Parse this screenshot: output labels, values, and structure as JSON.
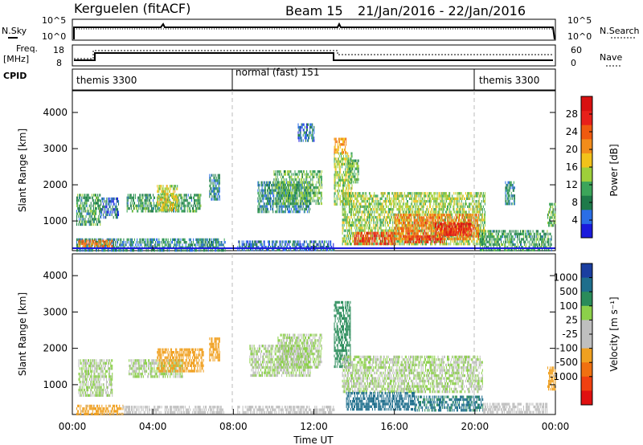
{
  "header": {
    "station": "Kerguelen (fitACF)",
    "beam": "Beam 15",
    "date_range": "21/Jan/2016 - 22/Jan/2016"
  },
  "labels": {
    "nsky": "N.Sky",
    "nsearch": "N.Search",
    "freq_line1": "Freq.",
    "freq_line2": "[MHz]",
    "nave": "Nave",
    "cpid": "CPID",
    "slant_range": "Slant Range [km]",
    "time_ut": "Time UT",
    "power_cb": "Power [dB]",
    "velocity_cb": "Velocity [m s⁻¹]"
  },
  "noise_axis": {
    "left": [
      "10^5",
      "10^0"
    ],
    "right": [
      "10^5",
      "10^0"
    ]
  },
  "freq_axis": {
    "left": [
      "18",
      "8"
    ],
    "right": [
      "60",
      "0"
    ]
  },
  "cpid_segments": [
    {
      "label": "themis 3300",
      "start_hour": 0,
      "end_hour": 8
    },
    {
      "label": "normal (fast) 151",
      "start_hour": 8,
      "end_hour": 20
    },
    {
      "label": "themis 3300",
      "start_hour": 20,
      "end_hour": 24
    }
  ],
  "x_ticks": [
    "00:00",
    "04:00",
    "08:00",
    "12:00",
    "16:00",
    "20:00",
    "00:00"
  ],
  "y_ticks": [
    "1000",
    "2000",
    "3000",
    "4000"
  ],
  "power_ticks": [
    "4",
    "8",
    "12",
    "16",
    "20",
    "24",
    "28"
  ],
  "velocity_ticks": [
    "1000",
    "500",
    "100",
    "25",
    "-25",
    "-100",
    "-500",
    "-1000"
  ],
  "colors": {
    "power_scale": [
      "#1a1adc",
      "#2a6ee6",
      "#1e7a4a",
      "#3ca55a",
      "#9ecf3a",
      "#f2c21a",
      "#f28c1a",
      "#f05a10",
      "#e8201a",
      "#d81010"
    ],
    "velocity_scale": [
      "#1a3ea0",
      "#1e6e8c",
      "#2a8c5a",
      "#8cd04a",
      "#bfbfbf",
      "#bfbfbf",
      "#f0a020",
      "#f07010",
      "#f04010",
      "#e01010"
    ]
  },
  "chart_data": [
    {
      "type": "heatmap",
      "title": "Power",
      "xlabel": "",
      "ylabel": "Slant Range [km]",
      "x_unit": "hours UT",
      "xlim": [
        0,
        24
      ],
      "ylim": [
        180,
        4600
      ],
      "zlabel": "Power [dB]",
      "zlim": [
        0,
        32
      ],
      "patches": [
        {
          "x0": 0.2,
          "x1": 7.6,
          "y0": 200,
          "y1": 520,
          "value": 8
        },
        {
          "x0": 0.3,
          "x1": 2.0,
          "y0": 300,
          "y1": 480,
          "value": 22
        },
        {
          "x0": 0.2,
          "x1": 1.4,
          "y0": 900,
          "y1": 1750,
          "value": 10
        },
        {
          "x0": 1.4,
          "x1": 2.3,
          "y0": 1100,
          "y1": 1650,
          "value": 6
        },
        {
          "x0": 2.7,
          "x1": 6.4,
          "y0": 1250,
          "y1": 1750,
          "value": 10
        },
        {
          "x0": 4.2,
          "x1": 5.2,
          "y0": 1300,
          "y1": 2000,
          "value": 16
        },
        {
          "x0": 6.8,
          "x1": 7.3,
          "y0": 1600,
          "y1": 2300,
          "value": 8
        },
        {
          "x0": 8.2,
          "x1": 13.0,
          "y0": 200,
          "y1": 460,
          "value": 6
        },
        {
          "x0": 9.2,
          "x1": 11.8,
          "y0": 1250,
          "y1": 2100,
          "value": 8
        },
        {
          "x0": 10.0,
          "x1": 12.4,
          "y0": 1500,
          "y1": 2400,
          "value": 12
        },
        {
          "x0": 11.2,
          "x1": 12.0,
          "y0": 3200,
          "y1": 3700,
          "value": 6
        },
        {
          "x0": 13.0,
          "x1": 13.9,
          "y0": 1500,
          "y1": 2900,
          "value": 14
        },
        {
          "x0": 13.0,
          "x1": 13.6,
          "y0": 2900,
          "y1": 3300,
          "value": 20
        },
        {
          "x0": 13.7,
          "x1": 14.2,
          "y0": 2100,
          "y1": 2700,
          "value": 12
        },
        {
          "x0": 13.4,
          "x1": 20.5,
          "y0": 400,
          "y1": 1800,
          "value": 14
        },
        {
          "x0": 14.0,
          "x1": 16.0,
          "y0": 400,
          "y1": 700,
          "value": 26
        },
        {
          "x0": 16.0,
          "x1": 20.2,
          "y0": 500,
          "y1": 1200,
          "value": 22
        },
        {
          "x0": 18.0,
          "x1": 19.8,
          "y0": 600,
          "y1": 950,
          "value": 28
        },
        {
          "x0": 16.5,
          "x1": 18.5,
          "y0": 450,
          "y1": 600,
          "value": 26
        },
        {
          "x0": 20.2,
          "x1": 23.8,
          "y0": 220,
          "y1": 750,
          "value": 10
        },
        {
          "x0": 21.5,
          "x1": 22.0,
          "y0": 1500,
          "y1": 2100,
          "value": 8
        },
        {
          "x0": 23.6,
          "x1": 24.0,
          "y0": 900,
          "y1": 1500,
          "value": 12
        }
      ]
    },
    {
      "type": "heatmap",
      "title": "Velocity",
      "xlabel": "Time UT",
      "ylabel": "Slant Range [km]",
      "x_unit": "hours UT",
      "xlim": [
        0,
        24
      ],
      "ylim": [
        180,
        4600
      ],
      "zlabel": "Velocity [m s⁻¹]",
      "zlim": [
        -1000,
        1000
      ],
      "patches": [
        {
          "x0": 0.3,
          "x1": 2.0,
          "y0": 700,
          "y1": 1700,
          "value": 0
        },
        {
          "x0": 0.2,
          "x1": 2.5,
          "y0": 220,
          "y1": 450,
          "value": -150
        },
        {
          "x0": 2.5,
          "x1": 7.5,
          "y0": 200,
          "y1": 420,
          "value": -40
        },
        {
          "x0": 2.8,
          "x1": 5.5,
          "y0": 1250,
          "y1": 1700,
          "value": 0
        },
        {
          "x0": 4.2,
          "x1": 6.5,
          "y0": 1350,
          "y1": 2000,
          "value": -300
        },
        {
          "x0": 6.8,
          "x1": 7.3,
          "y0": 1700,
          "y1": 2300,
          "value": -300
        },
        {
          "x0": 8.8,
          "x1": 11.8,
          "y0": 1250,
          "y1": 2100,
          "value": 0
        },
        {
          "x0": 10.2,
          "x1": 12.4,
          "y0": 1500,
          "y1": 2400,
          "value": 0
        },
        {
          "x0": 8.2,
          "x1": 13.0,
          "y0": 200,
          "y1": 420,
          "value": -40
        },
        {
          "x0": 13.0,
          "x1": 13.8,
          "y0": 1500,
          "y1": 3300,
          "value": 60
        },
        {
          "x0": 13.4,
          "x1": 20.4,
          "y0": 800,
          "y1": 1800,
          "value": 0
        },
        {
          "x0": 13.6,
          "x1": 17.0,
          "y0": 350,
          "y1": 800,
          "value": 200
        },
        {
          "x0": 17.0,
          "x1": 20.4,
          "y0": 300,
          "y1": 700,
          "value": 120
        },
        {
          "x0": 20.4,
          "x1": 23.6,
          "y0": 220,
          "y1": 500,
          "value": -40
        },
        {
          "x0": 23.6,
          "x1": 24.0,
          "y0": 900,
          "y1": 1500,
          "value": -300
        }
      ]
    }
  ]
}
